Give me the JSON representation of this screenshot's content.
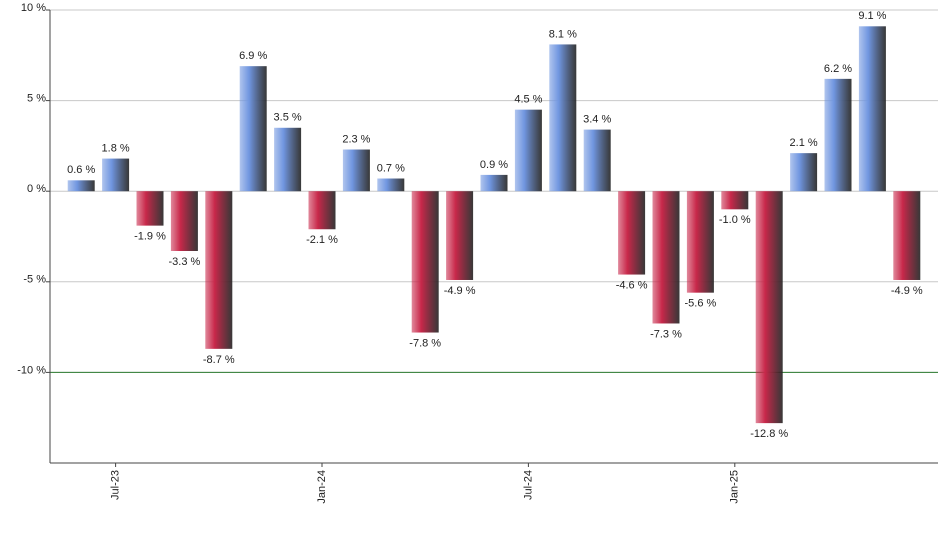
{
  "chart_data": {
    "type": "bar",
    "categories": [
      null,
      "Jul-23",
      null,
      null,
      null,
      null,
      null,
      "Jan-24",
      null,
      null,
      null,
      null,
      null,
      "Jul-24",
      null,
      null,
      null,
      null,
      null,
      "Jan-25",
      null,
      null,
      null,
      null,
      null
    ],
    "values": [
      0.6,
      1.8,
      -1.9,
      -3.3,
      -8.7,
      6.9,
      3.5,
      -2.1,
      2.3,
      0.7,
      -7.8,
      -4.9,
      0.9,
      4.5,
      8.1,
      3.4,
      -4.6,
      -7.3,
      -5.6,
      -1.0,
      -12.8,
      2.1,
      6.2,
      9.1,
      -4.9
    ],
    "value_labels": [
      "0.6 %",
      "1.8 %",
      "-1.9 %",
      "-3.3 %",
      "-8.7 %",
      "6.9 %",
      "3.5 %",
      "-2.1 %",
      "2.3 %",
      "0.7 %",
      "-7.8 %",
      "-4.9 %",
      "0.9 %",
      "4.5 %",
      "8.1 %",
      "3.4 %",
      "-4.6 %",
      "-7.3 %",
      "-5.6 %",
      "-1.0 %",
      "-12.8 %",
      "2.1 %",
      "6.2 %",
      "9.1 %",
      "-4.9 %"
    ],
    "positive_color": "#7096e0",
    "negative_color": "#c8284a",
    "ylim": [
      -15,
      10
    ],
    "yticks": [
      {
        "value": 10,
        "label": "10 %"
      },
      {
        "value": 5,
        "label": "5 %"
      },
      {
        "value": 0,
        "label": "0 %"
      },
      {
        "value": -5,
        "label": "-5 %"
      },
      {
        "value": -10,
        "label": "-10 %"
      }
    ],
    "grid": true,
    "reference_line": {
      "value": -10,
      "color": "#2e7d32"
    }
  }
}
